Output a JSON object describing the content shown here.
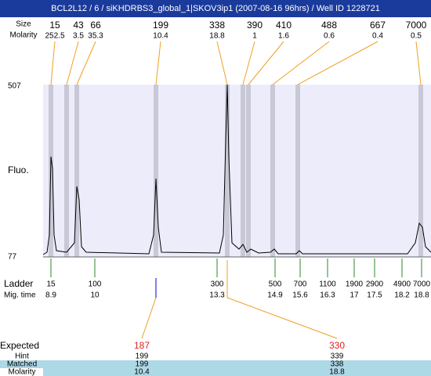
{
  "header": {
    "title": "BCL2L12 / 6 / siKHDRBS3_global_1|SKOV3ip1 (2007-08-16 96hrs) / Well ID 1228721"
  },
  "peaks": {
    "size_label": "Size",
    "molarity_label": "Molarity",
    "sizes": [
      15,
      43,
      66,
      199,
      338,
      390,
      410,
      488,
      667,
      7000
    ],
    "molarities": [
      252.5,
      3.5,
      35.3,
      10.4,
      18.8,
      1,
      1.6,
      0.6,
      0.4,
      0.5
    ]
  },
  "plot": {
    "y_label": "Fluo.",
    "y_top": 507,
    "y_bottom": 77
  },
  "ladder": {
    "label": "Ladder",
    "time_label": "Mig. time",
    "sizes": [
      15,
      100,
      300,
      500,
      700,
      1100,
      1900,
      2900,
      4900,
      7000
    ],
    "times": [
      8.9,
      10,
      13.3,
      14.9,
      15.6,
      16.3,
      17,
      17.5,
      18.2,
      18.8
    ]
  },
  "matches": {
    "labels": [
      "Expected",
      "Hint",
      "Matched",
      "Molarity"
    ],
    "columns": [
      [
        187,
        199,
        199,
        10.4
      ],
      [
        330,
        339,
        338,
        18.8
      ]
    ]
  }
}
